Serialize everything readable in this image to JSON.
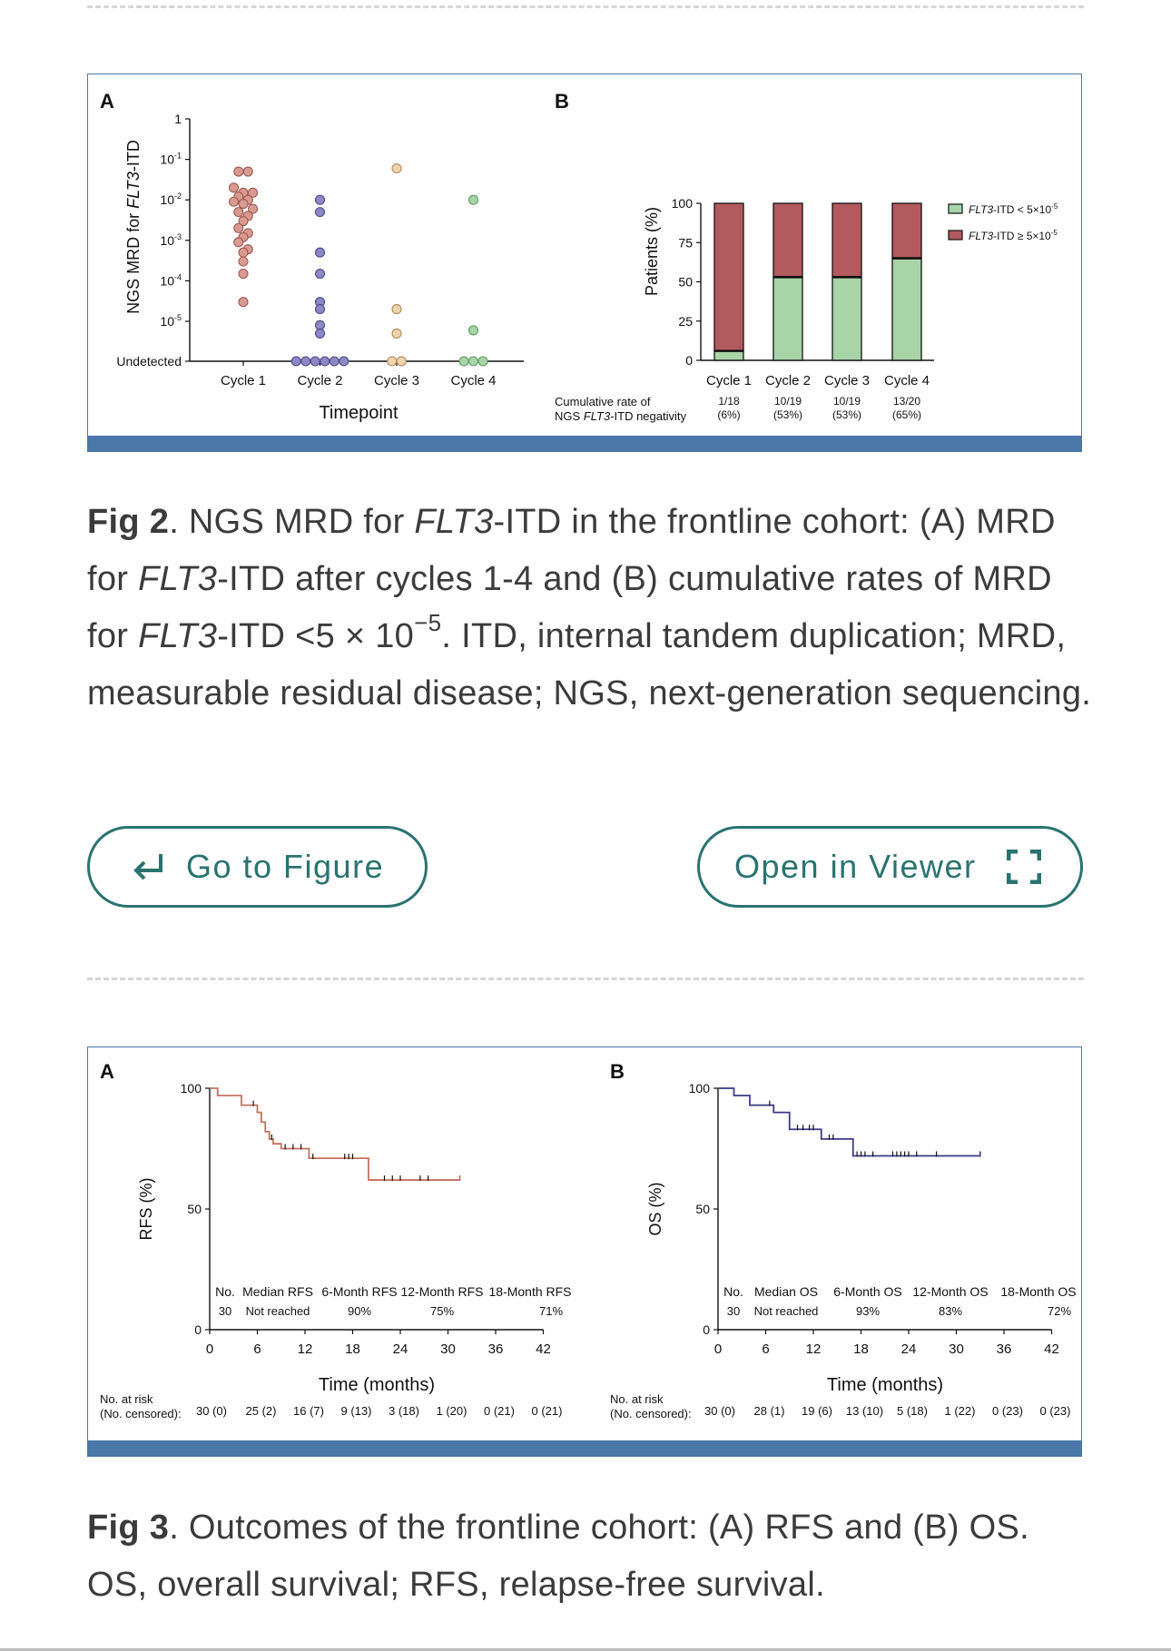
{
  "figure2": {
    "panel_a": {
      "label": "A",
      "y_label_prefix": "NGS MRD for ",
      "y_label_gene": "FLT3",
      "y_label_suffix": "-ITD",
      "y_ticks": [
        {
          "base": "1",
          "exp": ""
        },
        {
          "base": "10",
          "exp": "-1"
        },
        {
          "base": "10",
          "exp": "-2"
        },
        {
          "base": "10",
          "exp": "-3"
        },
        {
          "base": "10",
          "exp": "-4"
        },
        {
          "base": "10",
          "exp": "-5"
        },
        {
          "base": "Undetected",
          "exp": ""
        }
      ],
      "x_ticks": [
        "Cycle 1",
        "Cycle 2",
        "Cycle 3",
        "Cycle 4"
      ],
      "x_label": "Timepoint"
    },
    "panel_b": {
      "label": "B",
      "y_label": "Patients (%)",
      "y_ticks": [
        "0",
        "25",
        "50",
        "75",
        "100"
      ],
      "x_ticks": [
        "Cycle 1",
        "Cycle 2",
        "Cycle 3",
        "Cycle 4"
      ],
      "legend": [
        {
          "gene": "FLT3",
          "rest": "-ITD < 5×10",
          "exp": "-5",
          "color": "#a8d4a8"
        },
        {
          "gene": "FLT3",
          "rest": "-ITD ≥ 5×10",
          "exp": "-5",
          "color": "#b35a5e"
        }
      ],
      "cumulative_label_line1": "Cumulative rate of",
      "cumulative_label_line2_pre": "NGS ",
      "cumulative_label_line2_gene": "FLT3",
      "cumulative_label_line2_post": "-ITD negativity",
      "cumulative_rates": [
        {
          "count": "1/18",
          "pct": "(6%)"
        },
        {
          "count": "10/19",
          "pct": "(53%)"
        },
        {
          "count": "10/19",
          "pct": "(53%)"
        },
        {
          "count": "13/20",
          "pct": "(65%)"
        }
      ]
    },
    "caption": {
      "fig_label": "Fig 2",
      "p1": ". NGS MRD for ",
      "gene1": "FLT3",
      "p2": "-ITD in the frontline cohort: (A) MRD for ",
      "gene2": "FLT3",
      "p3": "-ITD after cycles 1-4 and (B) cumulative rates of MRD for ",
      "gene3": "FLT3",
      "p4": "-ITD <5 × 10",
      "exp": "−5",
      "p5": ". ITD, internal tandem duplication; MRD, measurable residual disease; NGS, next-generation sequencing."
    }
  },
  "buttons": {
    "go_to_figure": "Go to Figure",
    "open_in_viewer": "Open in Viewer"
  },
  "figure3": {
    "panel_a": {
      "label": "A",
      "y_label": "RFS (%)",
      "y_ticks": [
        "0",
        "50",
        "100"
      ],
      "x_ticks": [
        "0",
        "6",
        "12",
        "18",
        "24",
        "30",
        "36",
        "42"
      ],
      "x_label": "Time (months)",
      "table_header": [
        "No.",
        "Median RFS",
        "6-Month RFS",
        "12-Month RFS",
        "18-Month RFS"
      ],
      "table_row": [
        "30",
        "Not reached",
        "90%",
        "75%",
        "71%"
      ],
      "risk_label_1": "No. at risk",
      "risk_label_2": "(No. censored):",
      "risk_values": [
        "30 (0)",
        "25 (2)",
        "16 (7)",
        "9 (13)",
        "3 (18)",
        "1 (20)",
        "0 (21)",
        "0 (21)"
      ],
      "line_color": "#c4705e"
    },
    "panel_b": {
      "label": "B",
      "y_label": "OS (%)",
      "y_ticks": [
        "0",
        "50",
        "100"
      ],
      "x_ticks": [
        "0",
        "6",
        "12",
        "18",
        "24",
        "30",
        "36",
        "42"
      ],
      "x_label": "Time (months)",
      "table_header": [
        "No.",
        "Median OS",
        "6-Month OS",
        "12-Month OS",
        "18-Month OS"
      ],
      "table_row": [
        "30",
        "Not reached",
        "93%",
        "83%",
        "72%"
      ],
      "risk_label_1": "No. at risk",
      "risk_label_2": "(No. censored):",
      "risk_values": [
        "30 (0)",
        "28 (1)",
        "19 (6)",
        "13 (10)",
        "5 (18)",
        "1 (22)",
        "0 (23)",
        "0 (23)"
      ],
      "line_color": "#3a3a88"
    },
    "caption": {
      "fig_label": "Fig 3",
      "text": ". Outcomes of the frontline cohort: (A) RFS and (B) OS. OS, overall survival; RFS, relapse-free survival."
    }
  },
  "colors": {
    "accent": "#2a7370",
    "panel_border": "#4a78a8",
    "cycle1": "#d99a92",
    "cycle2": "#8c88c4",
    "cycle3": "#f1d3ad",
    "cycle4": "#a8d4a8"
  },
  "chart_data": [
    {
      "type": "scatter",
      "title": "A",
      "xlabel": "Timepoint",
      "ylabel": "NGS MRD for FLT3-ITD",
      "yscale": "log",
      "ylim": [
        1e-06,
        1
      ],
      "categories": [
        "Cycle 1",
        "Cycle 2",
        "Cycle 3",
        "Cycle 4"
      ],
      "series": [
        {
          "name": "Cycle 1",
          "values": [
            0.05,
            0.05,
            0.02,
            0.015,
            0.015,
            0.012,
            0.01,
            0.009,
            0.008,
            0.006,
            0.005,
            0.004,
            0.003,
            0.002,
            0.0015,
            0.0012,
            0.0009,
            0.0006,
            0.0005,
            0.0003,
            0.00015,
            3e-05
          ]
        },
        {
          "name": "Cycle 2",
          "values": [
            0.01,
            0.005,
            0.0005,
            0.00015,
            3e-05,
            2e-05,
            8e-06,
            5e-06,
            "undetected",
            "undetected",
            "undetected",
            "undetected",
            "undetected",
            "undetected"
          ]
        },
        {
          "name": "Cycle 3",
          "values": [
            0.06,
            2e-05,
            5e-06,
            "undetected",
            "undetected"
          ]
        },
        {
          "name": "Cycle 4",
          "values": [
            0.01,
            6e-06,
            "undetected",
            "undetected",
            "undetected"
          ]
        }
      ]
    },
    {
      "type": "bar",
      "stacked": true,
      "title": "B",
      "ylabel": "Patients (%)",
      "ylim": [
        0,
        100
      ],
      "categories": [
        "Cycle 1",
        "Cycle 2",
        "Cycle 3",
        "Cycle 4"
      ],
      "series": [
        {
          "name": "FLT3-ITD < 5×10^-5",
          "values": [
            6,
            53,
            53,
            65
          ]
        },
        {
          "name": "FLT3-ITD ≥ 5×10^-5",
          "values": [
            94,
            47,
            47,
            35
          ]
        }
      ]
    },
    {
      "type": "line",
      "step": true,
      "title": "A",
      "xlabel": "Time (months)",
      "ylabel": "RFS (%)",
      "xlim": [
        0,
        42
      ],
      "ylim": [
        0,
        100
      ],
      "series": [
        {
          "name": "RFS",
          "x": [
            0,
            1,
            4,
            6,
            6.5,
            7,
            7.5,
            8,
            9,
            12.5,
            20,
            31.5
          ],
          "y": [
            100,
            97,
            93,
            90,
            86,
            82,
            79,
            77,
            75,
            71,
            62,
            62
          ],
          "censored_x": [
            5.5,
            7.8,
            9.5,
            10.5,
            11.5,
            13,
            17,
            17.5,
            18,
            22,
            23,
            24,
            26.5,
            27.5
          ]
        }
      ]
    },
    {
      "type": "line",
      "step": true,
      "title": "B",
      "xlabel": "Time (months)",
      "ylabel": "OS (%)",
      "xlim": [
        0,
        42
      ],
      "ylim": [
        0,
        100
      ],
      "series": [
        {
          "name": "OS",
          "x": [
            0,
            2,
            4,
            7,
            9,
            13,
            17,
            33
          ],
          "y": [
            100,
            97,
            93,
            90,
            83,
            79,
            72,
            72
          ],
          "censored_x": [
            6.5,
            10,
            10.7,
            11.5,
            12,
            14,
            14.5,
            17.5,
            18,
            18.5,
            19.5,
            22,
            22.5,
            23,
            23.5,
            24,
            25,
            27.5
          ]
        }
      ]
    }
  ]
}
